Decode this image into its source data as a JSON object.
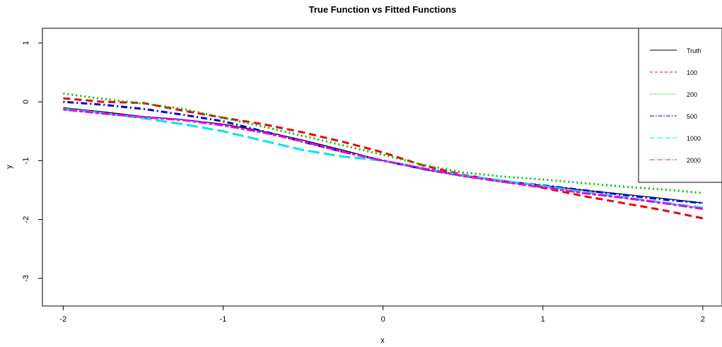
{
  "chart_data": {
    "type": "line",
    "title": "True Function vs Fitted Functions",
    "xlabel": "x",
    "ylabel": "y",
    "xlim": [
      -2.13,
      2.12
    ],
    "ylim": [
      -3.47,
      1.25
    ],
    "x_ticks": [
      -2,
      -1,
      0,
      1,
      2
    ],
    "x_tick_labels": [
      "-2",
      "-1",
      "0",
      "1",
      "2"
    ],
    "y_ticks": [
      1,
      0,
      -1,
      -2,
      -3
    ],
    "y_tick_labels": [
      "1",
      "0",
      "-1",
      "-2",
      "-3"
    ],
    "grid": false,
    "legend_position": "top-right",
    "x": [
      -2,
      -1.75,
      -1.5,
      -1.25,
      -1,
      -0.75,
      -0.5,
      -0.25,
      0,
      0.25,
      0.5,
      0.75,
      1,
      1.25,
      1.5,
      1.75,
      2
    ],
    "series": [
      {
        "name": "Truth",
        "color": "#000000",
        "dash": "solid",
        "width": 1.3,
        "values": [
          -0.1,
          -0.17,
          -0.25,
          -0.3,
          -0.38,
          -0.5,
          -0.65,
          -0.82,
          -1.0,
          -1.15,
          -1.26,
          -1.34,
          -1.42,
          -1.5,
          -1.57,
          -1.64,
          -1.72
        ]
      },
      {
        "name": "100",
        "color": "#e8000b",
        "dash": "dashed",
        "width": 3,
        "values": [
          0.06,
          0.0,
          -0.02,
          -0.15,
          -0.27,
          -0.38,
          -0.52,
          -0.68,
          -0.86,
          -1.08,
          -1.24,
          -1.35,
          -1.46,
          -1.6,
          -1.72,
          -1.84,
          -1.98
        ]
      },
      {
        "name": "200",
        "color": "#00c000",
        "dash": "dotted",
        "width": 3,
        "values": [
          0.14,
          0.05,
          -0.03,
          -0.12,
          -0.27,
          -0.42,
          -0.58,
          -0.74,
          -0.9,
          -1.07,
          -1.2,
          -1.27,
          -1.32,
          -1.38,
          -1.44,
          -1.49,
          -1.55
        ]
      },
      {
        "name": "500",
        "color": "#0000d0",
        "dash": "dotdash",
        "width": 3,
        "values": [
          0.0,
          -0.05,
          -0.12,
          -0.22,
          -0.33,
          -0.5,
          -0.68,
          -0.85,
          -1.0,
          -1.14,
          -1.26,
          -1.35,
          -1.42,
          -1.5,
          -1.58,
          -1.66,
          -1.72
        ]
      },
      {
        "name": "1000",
        "color": "#00e5ee",
        "dash": "longdash",
        "width": 3,
        "values": [
          -0.12,
          -0.19,
          -0.28,
          -0.38,
          -0.5,
          -0.66,
          -0.82,
          -0.93,
          -1.0,
          -1.13,
          -1.25,
          -1.34,
          -1.43,
          -1.53,
          -1.62,
          -1.71,
          -1.8
        ]
      },
      {
        "name": "2000",
        "color": "#e600e6",
        "dash": "twodash",
        "width": 3,
        "values": [
          -0.13,
          -0.2,
          -0.26,
          -0.31,
          -0.4,
          -0.52,
          -0.67,
          -0.85,
          -1.0,
          -1.13,
          -1.26,
          -1.36,
          -1.45,
          -1.55,
          -1.63,
          -1.72,
          -1.82
        ]
      }
    ]
  }
}
